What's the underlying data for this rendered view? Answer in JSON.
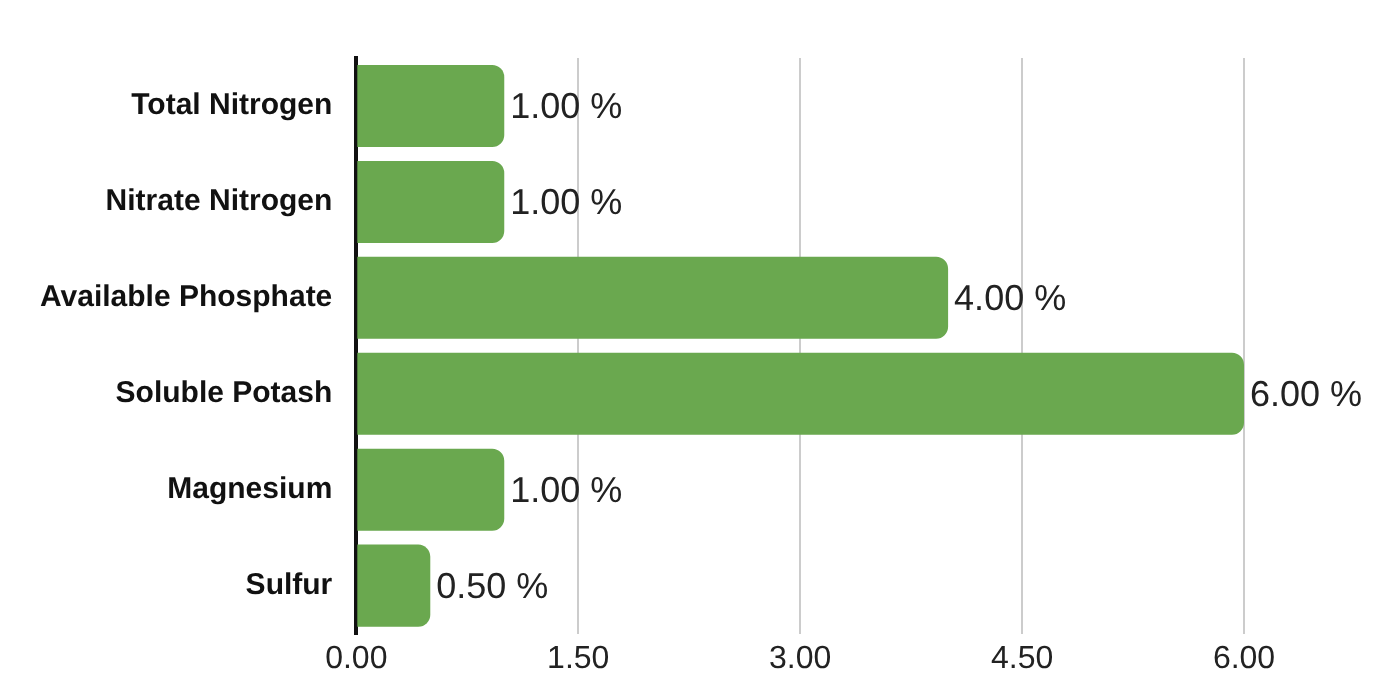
{
  "chart_data": {
    "type": "bar",
    "orientation": "horizontal",
    "categories": [
      "Total Nitrogen",
      "Nitrate Nitrogen",
      "Available Phosphate",
      "Soluble Potash",
      "Magnesium",
      "Sulfur"
    ],
    "values": [
      1,
      1,
      4,
      6,
      1,
      0.5
    ],
    "value_labels": [
      "1.00 %",
      "1.00 %",
      "4.00 %",
      "6.00 %",
      "1.00 %",
      "0.50 %"
    ],
    "color": "#6aa84f",
    "xlim": [
      0,
      6
    ],
    "xticks": [
      {
        "value": 0,
        "label": "0.00"
      },
      {
        "value": 1.5,
        "label": "1.50"
      },
      {
        "value": 3,
        "label": "3.00"
      },
      {
        "value": 4.5,
        "label": "4.50"
      },
      {
        "value": 6,
        "label": "6.00"
      }
    ],
    "grid": "x",
    "legend": false
  }
}
